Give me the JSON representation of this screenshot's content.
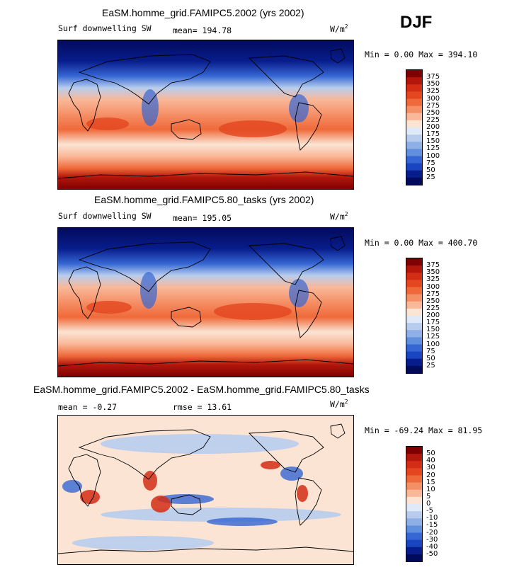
{
  "season": "DJF",
  "chart_data": [
    {
      "type": "heatmap",
      "title": "EaSM.homme_grid.FAMIPC5.2002 (yrs 2002)",
      "variable": "Surf downwelling SW",
      "mean_label": "mean= 194.78",
      "units_base": "W/m",
      "units_exp": "2",
      "minmax_label": "Min =    0.00 Max = 394.10",
      "colorbar_levels": [
        "375",
        "350",
        "325",
        "300",
        "275",
        "250",
        "225",
        "200",
        "175",
        "150",
        "125",
        "100",
        "75",
        "50",
        "25"
      ],
      "colors": [
        "#7f0000",
        "#b3170c",
        "#d42d15",
        "#e4461f",
        "#ef6a3a",
        "#f58f66",
        "#f9b899",
        "#fbe4d4",
        "#dfe9f7",
        "#b8cdee",
        "#8eb0e6",
        "#6090dd",
        "#3566d3",
        "#1a45c1",
        "#081d8c",
        "#020a5c"
      ]
    },
    {
      "type": "heatmap",
      "title": "EaSM.homme_grid.FAMIPC5.80_tasks (yrs 2002)",
      "variable": "Surf downwelling SW",
      "mean_label": "mean= 195.05",
      "units_base": "W/m",
      "units_exp": "2",
      "minmax_label": "Min =    0.00 Max = 400.70",
      "colorbar_levels": [
        "375",
        "350",
        "325",
        "300",
        "275",
        "250",
        "225",
        "200",
        "175",
        "150",
        "125",
        "100",
        "75",
        "50",
        "25"
      ],
      "colors": [
        "#7f0000",
        "#b3170c",
        "#d42d15",
        "#e4461f",
        "#ef6a3a",
        "#f58f66",
        "#f9b899",
        "#fbe4d4",
        "#dfe9f7",
        "#b8cdee",
        "#8eb0e6",
        "#6090dd",
        "#3566d3",
        "#1a45c1",
        "#081d8c",
        "#020a5c"
      ]
    },
    {
      "type": "heatmap",
      "title": "EaSM.homme_grid.FAMIPC5.2002 - EaSM.homme_grid.FAMIPC5.80_tasks",
      "mean_label": "mean =   -0.27",
      "rmse_label": "rmse =   13.61",
      "units_base": "W/m",
      "units_exp": "2",
      "minmax_label": "Min = -69.24 Max =  81.95",
      "colorbar_levels": [
        "50",
        "40",
        "30",
        "20",
        "15",
        "10",
        "5",
        "0",
        "-5",
        "-10",
        "-15",
        "-20",
        "-30",
        "-40",
        "-50"
      ],
      "colors": [
        "#7f0000",
        "#b3170c",
        "#d42d15",
        "#e4461f",
        "#ef6a3a",
        "#f58f66",
        "#f9b899",
        "#fbe4d4",
        "#dfe9f7",
        "#b8cdee",
        "#8eb0e6",
        "#6090dd",
        "#3566d3",
        "#1a45c1",
        "#081d8c",
        "#020a5c"
      ]
    }
  ]
}
